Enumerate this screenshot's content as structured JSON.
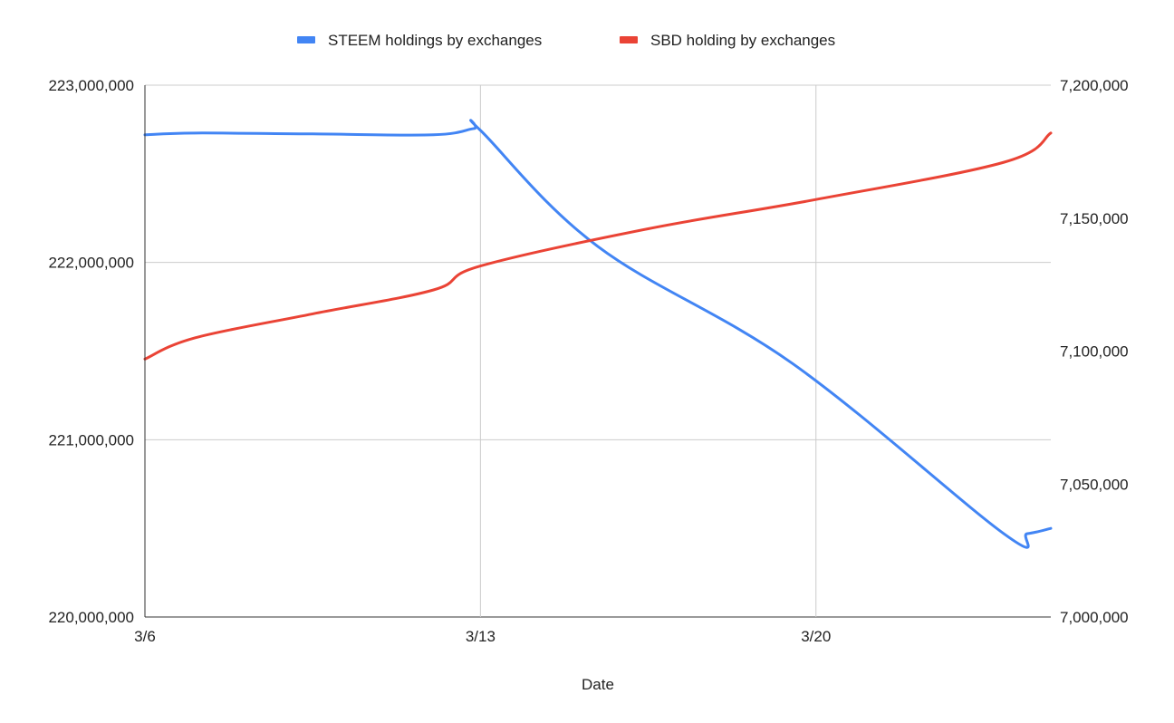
{
  "chart_data": {
    "type": "line",
    "xlabel": "Date",
    "x": [
      "3/6",
      "3/7.5",
      "3/12.5",
      "3/13",
      "3/25",
      "3/26.5",
      "3/27"
    ],
    "x_days": [
      0,
      1.5,
      8.6,
      10,
      25.6,
      26.3,
      27
    ],
    "x_ticks": [
      "3/6",
      "3/13",
      "3/20"
    ],
    "x_tick_days": [
      0,
      10,
      20
    ],
    "xlim_days": [
      0,
      27
    ],
    "left_axis": {
      "ylim": [
        220000000,
        223000000
      ],
      "ticks": [
        "220,000,000",
        "221,000,000",
        "222,000,000",
        "223,000,000"
      ],
      "tick_values": [
        220000000,
        221000000,
        222000000,
        223000000
      ]
    },
    "right_axis": {
      "ylim": [
        7000000,
        7200000
      ],
      "ticks": [
        "7,000,000",
        "7,050,000",
        "7,100,000",
        "7,150,000",
        "7,200,000"
      ],
      "tick_values": [
        7000000,
        7050000,
        7100000,
        7150000,
        7200000
      ]
    },
    "series": [
      {
        "name": "STEEM holdings by exchanges",
        "axis": "left",
        "color": "#4285f4",
        "points": [
          [
            0,
            222720000
          ],
          [
            1.5,
            222730000
          ],
          [
            5,
            222725000
          ],
          [
            8.6,
            222720000
          ],
          [
            9.8,
            222755000
          ],
          [
            10,
            222745000
          ],
          [
            13.5,
            222090000
          ],
          [
            19.3,
            221430000
          ],
          [
            25.6,
            220470000
          ],
          [
            26.3,
            220470000
          ],
          [
            27,
            220500000
          ]
        ]
      },
      {
        "name": "SBD holding by exchanges",
        "axis": "right",
        "color": "#ea4335",
        "points": [
          [
            0,
            7097000
          ],
          [
            1.5,
            7105000
          ],
          [
            5,
            7114000
          ],
          [
            8.6,
            7123000
          ],
          [
            10,
            7132000
          ],
          [
            15,
            7146000
          ],
          [
            20,
            7157000
          ],
          [
            25.6,
            7171000
          ],
          [
            27,
            7182000
          ]
        ]
      }
    ],
    "grid": true,
    "legend_position": "top"
  }
}
